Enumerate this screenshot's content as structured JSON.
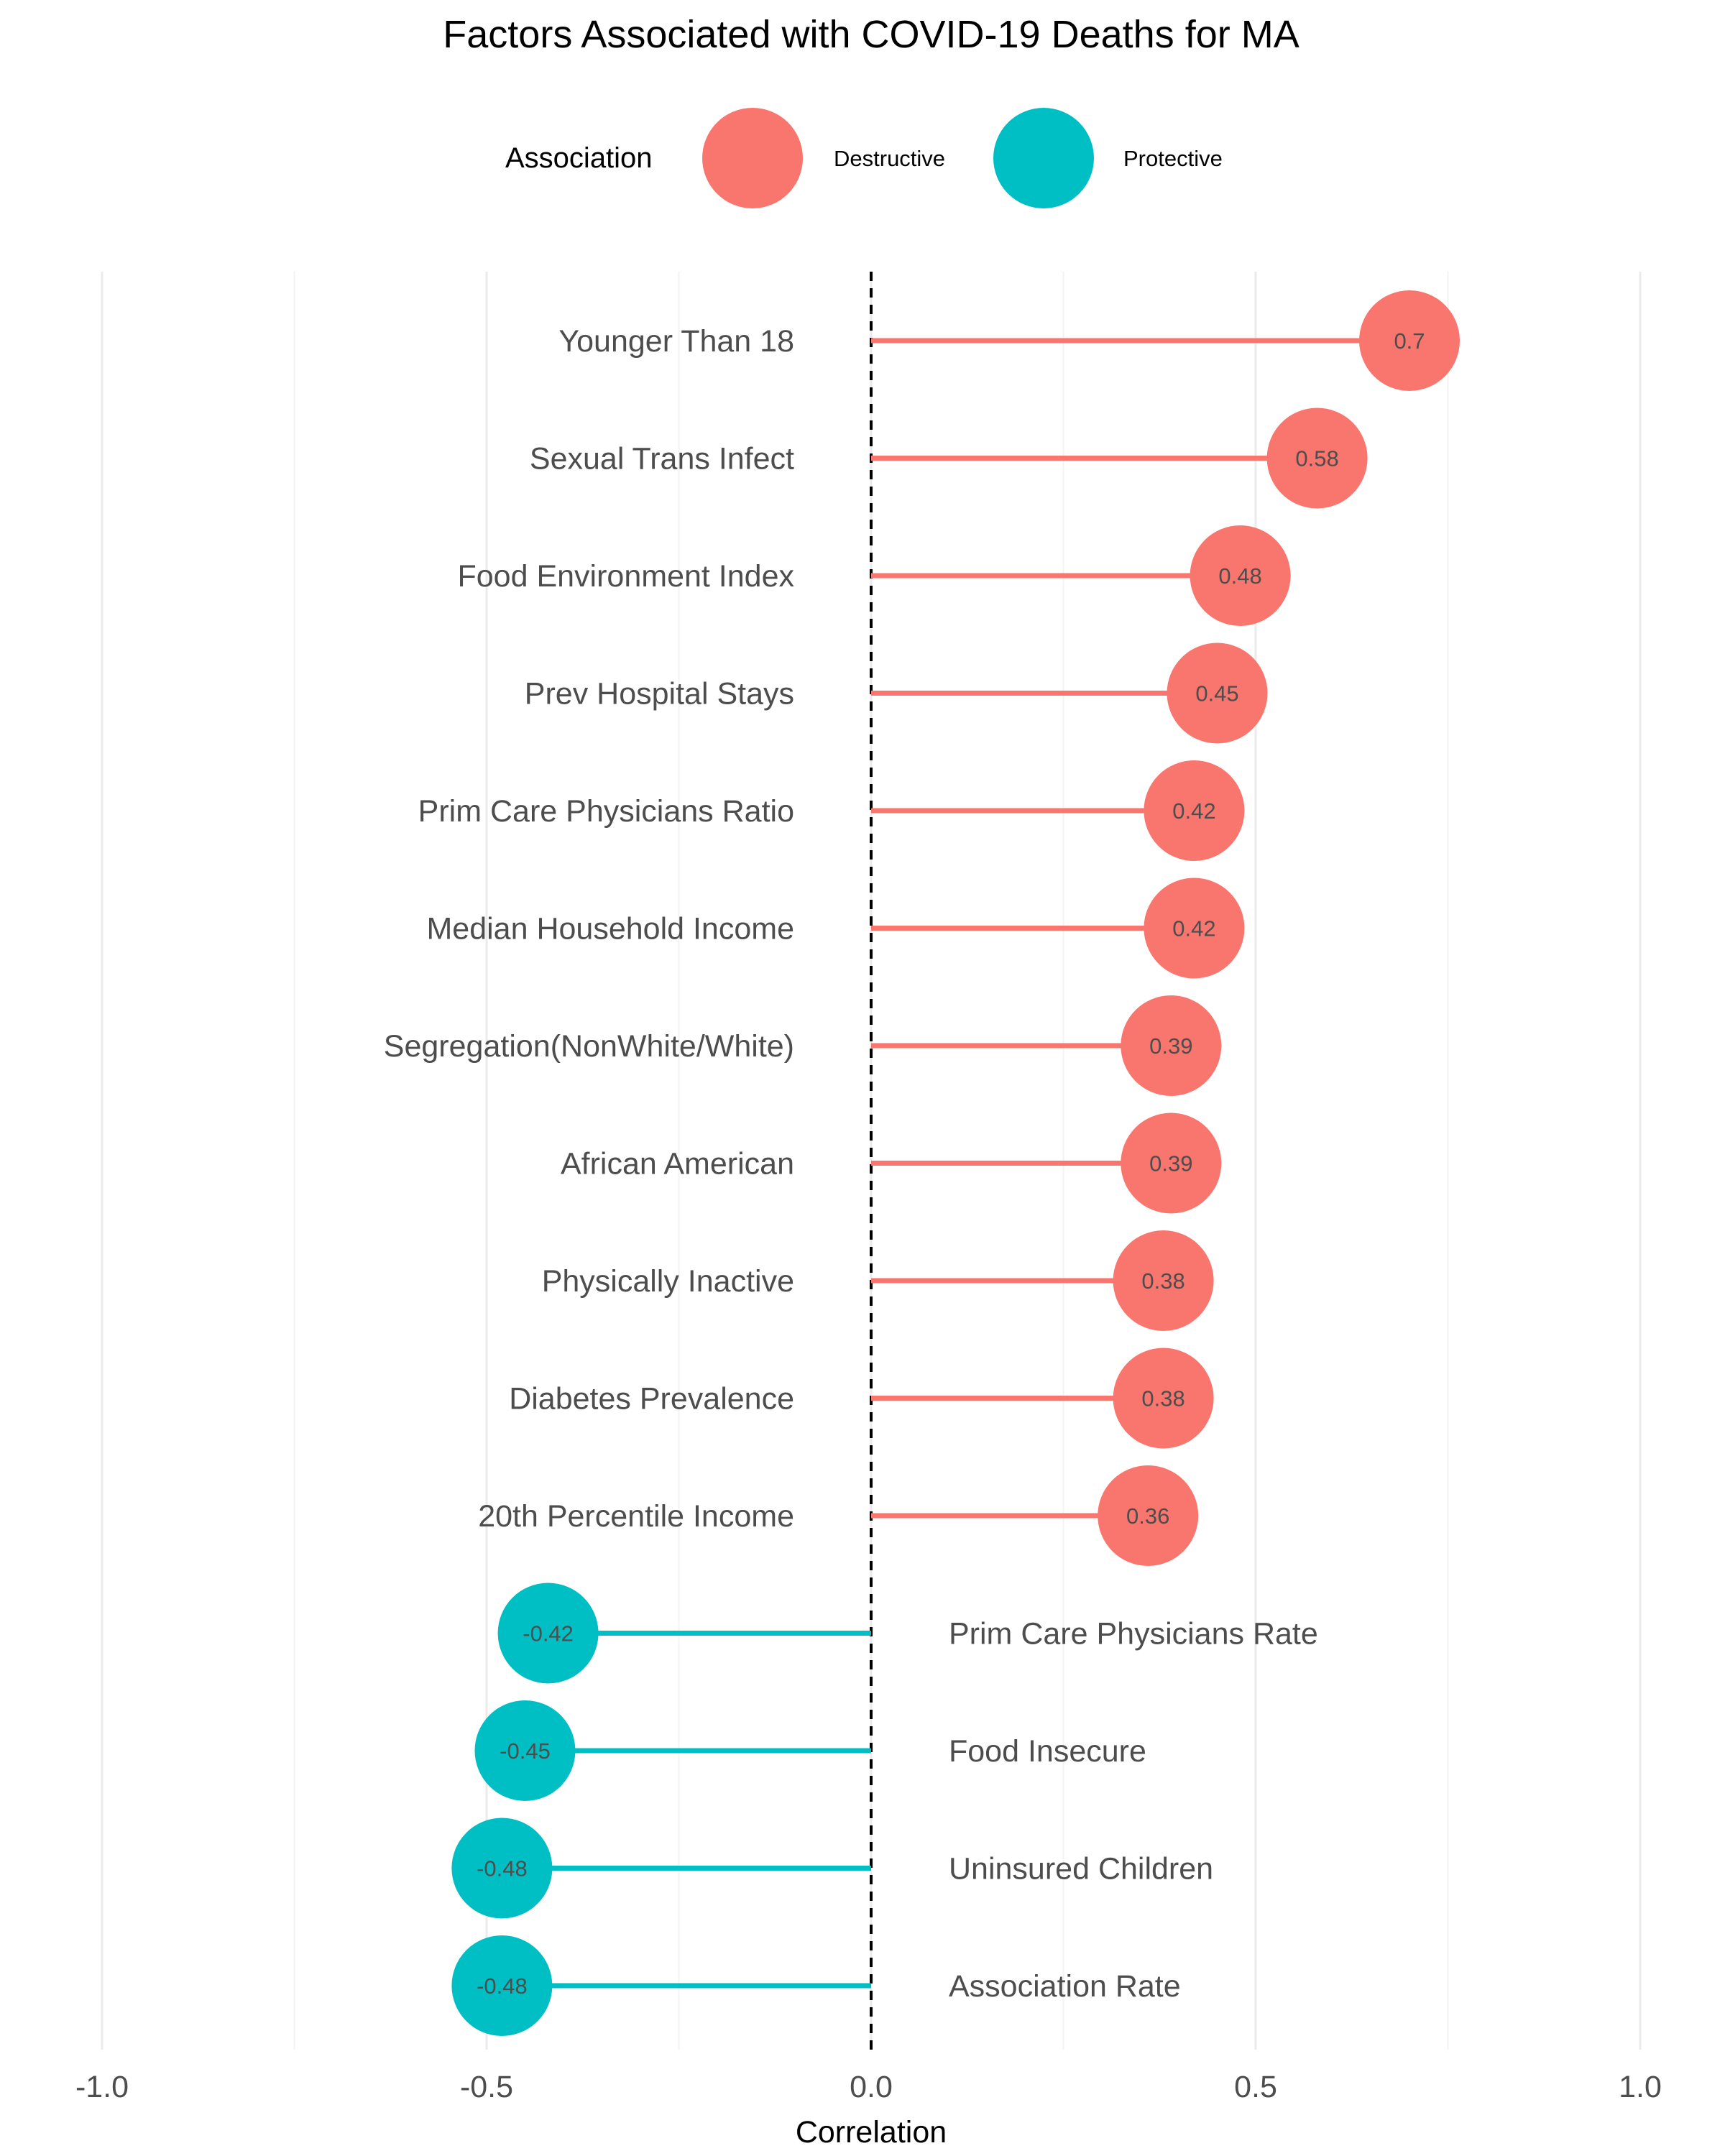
{
  "chart_data": {
    "type": "lollipop",
    "title": "Factors Associated with COVID-19 Deaths for MA",
    "xlabel": "Correlation",
    "ylabel": "",
    "xlim": [
      -1.0,
      1.0
    ],
    "x_ticks": [
      -1.0,
      -0.5,
      0.0,
      0.5,
      1.0
    ],
    "x_tick_labels": [
      "-1.0",
      "-0.5",
      "0.0",
      "0.5",
      "1.0"
    ],
    "reference_line": 0.0,
    "grid": "vertical",
    "legend": {
      "title": "Association",
      "position": "top",
      "entries": [
        {
          "label": "Destructive",
          "color": "#F8766D"
        },
        {
          "label": "Protective",
          "color": "#00BFC4"
        }
      ]
    },
    "points": [
      {
        "category": "Younger Than 18",
        "value": 0.7,
        "label": "0.7",
        "association": "Destructive"
      },
      {
        "category": "Sexual Trans Infect",
        "value": 0.58,
        "label": "0.58",
        "association": "Destructive"
      },
      {
        "category": "Food Environment Index",
        "value": 0.48,
        "label": "0.48",
        "association": "Destructive"
      },
      {
        "category": "Prev Hospital Stays",
        "value": 0.45,
        "label": "0.45",
        "association": "Destructive"
      },
      {
        "category": "Prim Care Physicians Ratio",
        "value": 0.42,
        "label": "0.42",
        "association": "Destructive"
      },
      {
        "category": "Median Household Income",
        "value": 0.42,
        "label": "0.42",
        "association": "Destructive"
      },
      {
        "category": "Segregation(NonWhite/White)",
        "value": 0.39,
        "label": "0.39",
        "association": "Destructive"
      },
      {
        "category": "African American",
        "value": 0.39,
        "label": "0.39",
        "association": "Destructive"
      },
      {
        "category": "Physically Inactive",
        "value": 0.38,
        "label": "0.38",
        "association": "Destructive"
      },
      {
        "category": "Diabetes Prevalence",
        "value": 0.38,
        "label": "0.38",
        "association": "Destructive"
      },
      {
        "category": "20th Percentile Income",
        "value": 0.36,
        "label": "0.36",
        "association": "Destructive"
      },
      {
        "category": "Prim Care Physicians Rate",
        "value": -0.42,
        "label": "-0.42",
        "association": "Protective"
      },
      {
        "category": "Food Insecure",
        "value": -0.45,
        "label": "-0.45",
        "association": "Protective"
      },
      {
        "category": "Uninsured Children",
        "value": -0.48,
        "label": "-0.48",
        "association": "Protective"
      },
      {
        "category": "Association Rate",
        "value": -0.48,
        "label": "-0.48",
        "association": "Protective"
      }
    ]
  }
}
